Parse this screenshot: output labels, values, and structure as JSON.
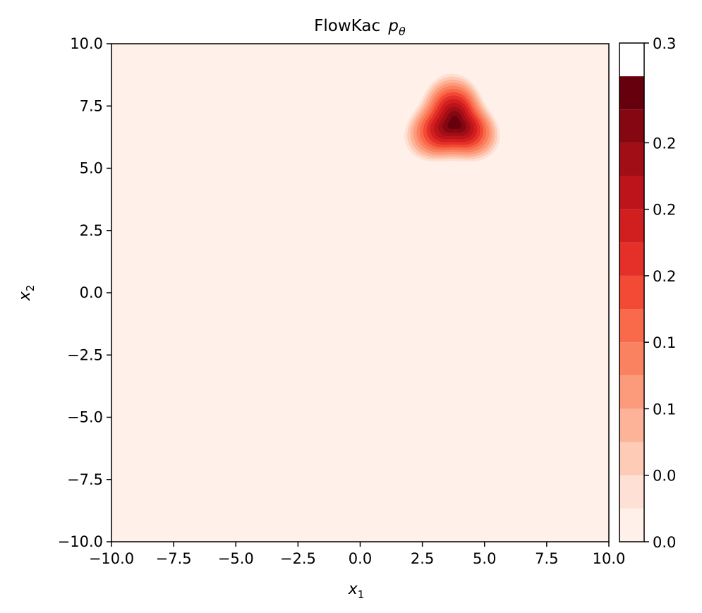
{
  "chart_data": {
    "type": "heatmap",
    "title": "FlowKac",
    "title_symbol": "p",
    "title_subscript": "θ",
    "xlabel": "x",
    "xlabel_subscript": "1",
    "ylabel": "x",
    "ylabel_subscript": "2",
    "xlim": [
      -10.0,
      10.0
    ],
    "ylim": [
      -10.0,
      10.0
    ],
    "x_ticks": [
      "−10.0",
      "−7.5",
      "−5.0",
      "−2.5",
      "0.0",
      "2.5",
      "5.0",
      "7.5",
      "10.0"
    ],
    "y_ticks": [
      "−10.0",
      "−7.5",
      "−5.0",
      "−2.5",
      "0.0",
      "2.5",
      "5.0",
      "7.5",
      "10.0"
    ],
    "x_tick_values": [
      -10,
      -7.5,
      -5,
      -2.5,
      0,
      2.5,
      5,
      7.5,
      10
    ],
    "y_tick_values": [
      -10,
      -7.5,
      -5,
      -2.5,
      0,
      2.5,
      5,
      7.5,
      10
    ],
    "peak_center": [
      3.7,
      6.8
    ],
    "peak_value": 0.3,
    "colormap": "Reds",
    "grid": false,
    "colorbar": {
      "range": [
        0.0,
        0.3
      ],
      "tick_labels": [
        "0.0",
        "0.0",
        "0.1",
        "0.1",
        "0.2",
        "0.2",
        "0.2",
        "0.3"
      ],
      "tick_values": [
        0.0,
        0.04,
        0.08,
        0.12,
        0.16,
        0.2,
        0.24,
        0.28
      ],
      "levels": [
        0.0,
        0.02,
        0.04,
        0.06,
        0.08,
        0.1,
        0.12,
        0.14,
        0.16,
        0.18,
        0.2,
        0.22,
        0.24,
        0.26,
        0.28
      ],
      "colors": [
        "#fff0e9",
        "#fee1d4",
        "#fdcbb6",
        "#fcb398",
        "#fc9b7c",
        "#fb8261",
        "#f86a4a",
        "#f24a35",
        "#e43028",
        "#d11e1f",
        "#bc141a",
        "#a10e15",
        "#840711",
        "#67000d"
      ],
      "background_color": "#fff0e9"
    }
  }
}
